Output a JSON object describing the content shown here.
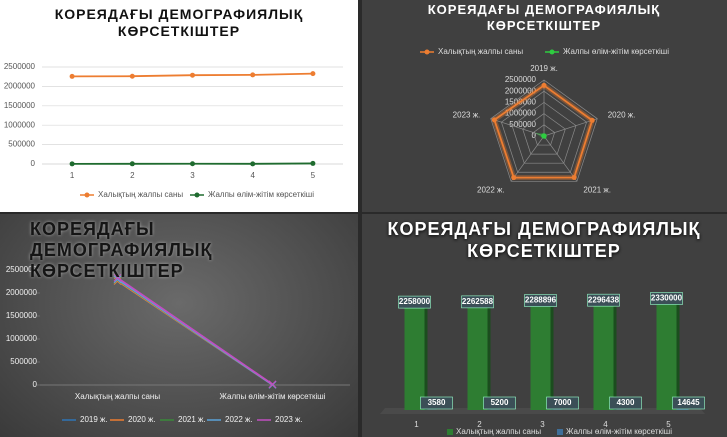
{
  "chart_data": [
    {
      "type": "line",
      "title": "КОРЕЯДАҒЫ ДЕМОГРАФИЯЛЫҚ КӨРСЕТКІШТЕР",
      "categories": [
        "1",
        "2",
        "3",
        "4",
        "5"
      ],
      "series": [
        {
          "name": "Халықтың жалпы саны",
          "color": "#ed7d31",
          "values": [
            2258000,
            2262588,
            2288896,
            2296438,
            2330000
          ]
        },
        {
          "name": "Жалпы өлім-жітім көрсеткіші",
          "color": "#1f6b2f",
          "values": [
            3580,
            5200,
            7000,
            4300,
            14645
          ]
        }
      ],
      "ylim": [
        0,
        2500000
      ],
      "yticks": [
        0,
        500000,
        1000000,
        1500000,
        2000000,
        2500000
      ],
      "grid": true,
      "marker": "circle",
      "legend": "bottom"
    },
    {
      "type": "radar",
      "title": "КОРЕЯДАҒЫ ДЕМОГРАФИЯЛЫҚ КӨРСЕТКІШТЕР",
      "categories": [
        "2019 ж.",
        "2020 ж.",
        "2021 ж.",
        "2022 ж.",
        "2023 ж."
      ],
      "series": [
        {
          "name": "Халықтың жалпы саны",
          "color": "#ed7d31",
          "values": [
            2258000,
            2262588,
            2288896,
            2296438,
            2330000
          ]
        },
        {
          "name": "Жалпы өлім-жітім көрсеткіші",
          "color": "#2ecc40",
          "values": [
            3580,
            5200,
            7000,
            4300,
            14645
          ]
        }
      ],
      "ylim": [
        0,
        2500000
      ],
      "yticks": [
        0,
        500000,
        1000000,
        1500000,
        2000000,
        2500000
      ],
      "grid": true,
      "marker": "circle",
      "legend": "top"
    },
    {
      "type": "line",
      "title": "КОРЕЯДАҒЫ ДЕМОГРАФИЯЛЫҚ КӨРСЕТКІШТЕР",
      "categories": [
        "Халықтың жалпы саны",
        "Жалпы өлім-жітім көрсеткіші"
      ],
      "series": [
        {
          "name": "2019 ж.",
          "color": "#2e75b6",
          "values": [
            2258000,
            3580
          ]
        },
        {
          "name": "2020 ж.",
          "color": "#ed7d31",
          "values": [
            2262588,
            5200
          ]
        },
        {
          "name": "2021 ж.",
          "color": "#3a8a3a",
          "values": [
            2288896,
            7000
          ]
        },
        {
          "name": "2022 ж.",
          "color": "#5ba3d9",
          "values": [
            2296438,
            4300
          ]
        },
        {
          "name": "2023 ж.",
          "color": "#c04fc0",
          "values": [
            2330000,
            14645
          ]
        }
      ],
      "ylim": [
        0,
        2500000
      ],
      "yticks": [
        0,
        500000,
        1000000,
        1500000,
        2000000,
        2500000
      ],
      "grid": false,
      "marker": "x",
      "legend": "bottom"
    },
    {
      "type": "bar",
      "title": "КОРЕЯДАҒЫ ДЕМОГРАФИЯЛЫҚ КӨРСЕТКІШТЕР",
      "categories": [
        "1",
        "2",
        "3",
        "4",
        "5"
      ],
      "series": [
        {
          "name": "Халықтың жалпы саны",
          "color": "#2e7d32",
          "values": [
            2258000,
            2262588,
            2288896,
            2296438,
            2330000
          ]
        },
        {
          "name": "Жалпы өлім-жітім көрсеткіші",
          "color": "#3f6f99",
          "values": [
            3580,
            5200,
            7000,
            4300,
            14645
          ]
        }
      ],
      "ylim": [
        0,
        2500000
      ],
      "data_labels": true,
      "legend": "bottom"
    }
  ]
}
